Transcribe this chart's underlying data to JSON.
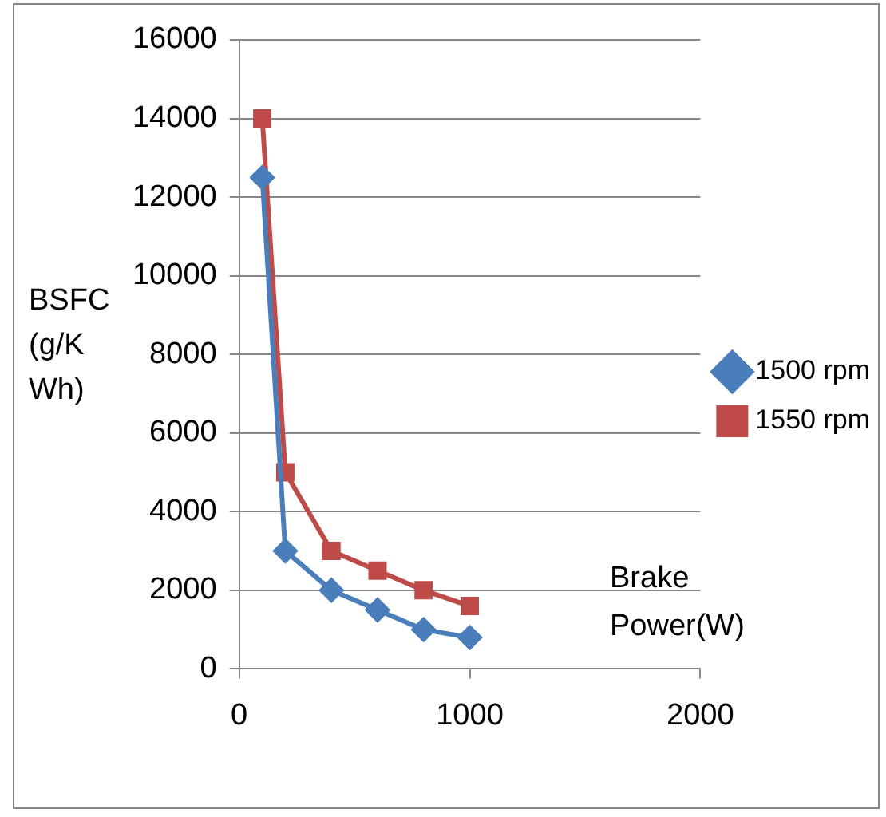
{
  "chart_data": {
    "type": "line",
    "xlabel": "Brake Power(W)",
    "ylabel": "BSFC (g/KWh)",
    "x": [
      100,
      200,
      400,
      600,
      800,
      1000
    ],
    "series": [
      {
        "name": "1500 rpm",
        "color": "#4a7ebb",
        "marker": "diamond",
        "values": [
          12500,
          3000,
          2000,
          1500,
          1000,
          800
        ]
      },
      {
        "name": "1550 rpm",
        "color": "#be4b48",
        "marker": "square",
        "values": [
          14000,
          5000,
          3000,
          2500,
          2000,
          1600
        ]
      }
    ],
    "xlim": [
      0,
      2000
    ],
    "xticks": [
      0,
      1000,
      2000
    ],
    "ylim": [
      0,
      16000
    ],
    "yticks": [
      0,
      2000,
      4000,
      6000,
      8000,
      10000,
      12000,
      14000,
      16000
    ],
    "grid": "y",
    "legend": "right"
  }
}
